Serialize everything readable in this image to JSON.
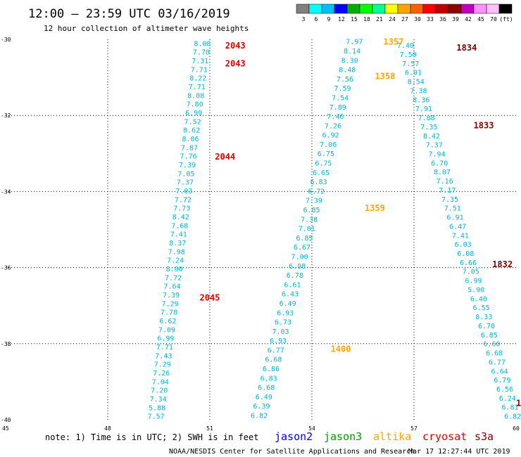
{
  "header": {
    "title": "12:00 – 23:59 UTC 03/16/2019",
    "subtitle": "12 hour collection of altimeter wave heights"
  },
  "colorbar": {
    "labels": [
      "3",
      "6",
      "9",
      "12",
      "15",
      "18",
      "21",
      "24",
      "27",
      "30",
      "33",
      "36",
      "39",
      "42",
      "45",
      "70",
      "(ft)"
    ],
    "colors": [
      "#808080",
      "#00ffff",
      "#00bfff",
      "#0000ff",
      "#00b000",
      "#00ff00",
      "#00ff90",
      "#ffff00",
      "#ffa500",
      "#ff6000",
      "#ff0000",
      "#c00000",
      "#900000",
      "#c000c0",
      "#ff90ff",
      "#ffc0ff",
      "#000000"
    ]
  },
  "footer": {
    "note": "note: 1) Time is in UTC; 2) SWH is in feet",
    "satellites": [
      {
        "name": "jason2",
        "color": "#0000ff"
      },
      {
        "name": "jason3",
        "color": "#00a000"
      },
      {
        "name": "altika",
        "color": "#ffa500"
      },
      {
        "name": "cryosat",
        "color": "#e00000"
      },
      {
        "name": "s3a",
        "color": "#800000"
      }
    ],
    "credit": "NOAA/NESDIS Center for Satellite Applications and Research",
    "timestamp": "Mar 17 12:27:44 UTC 2019"
  },
  "chart_data": {
    "type": "scatter",
    "x_ticks": [
      "45",
      "48",
      "51",
      "54",
      "57",
      "60"
    ],
    "y_ticks": [
      "-30",
      "-32",
      "-34",
      "-36",
      "-38",
      "-40"
    ],
    "xlim": [
      45,
      60
    ],
    "ylim": [
      -40,
      -30
    ],
    "grid": true,
    "swh_color": "#00b4dc",
    "tracks": [
      {
        "satellite": "cryosat",
        "color": "#e00000",
        "start": [
          50.78,
          -30.1
        ],
        "end": [
          49.42,
          -39.9
        ],
        "values": [
          "8.08",
          "7.70",
          "7.31",
          "7.71",
          "8.22",
          "7.71",
          "8.08",
          "7.80",
          "6.99",
          "7.52",
          "8.62",
          "8.06",
          "7.87",
          "7.76",
          "7.39",
          "7.05",
          "7.37",
          "7.03",
          "7.72",
          "7.73",
          "8.42",
          "7.68",
          "7.41",
          "8.37",
          "7.98",
          "7.24",
          "8.00",
          "7.72",
          "7.64",
          "7.39",
          "7.29",
          "7.78",
          "6.62",
          "7.09",
          "6.99",
          "7.71",
          "7.43",
          "7.29",
          "7.26",
          "7.04",
          "7.20",
          "7.34",
          "5.88",
          "7.57"
        ],
        "pass_labels": [
          {
            "text": "2043",
            "lon": 51.45,
            "lat": -30.15
          },
          {
            "text": "2043",
            "lon": 51.45,
            "lat": -30.62
          },
          {
            "text": "2044",
            "lon": 51.15,
            "lat": -33.07
          },
          {
            "text": "2045",
            "lon": 50.7,
            "lat": -36.77
          }
        ]
      },
      {
        "satellite": "altika",
        "color": "#ffa500",
        "start": [
          55.25,
          -30.05
        ],
        "end": [
          52.45,
          -39.88
        ],
        "values": [
          "7.97",
          "8.14",
          "8.30",
          "8.48",
          "7.56",
          "7.59",
          "7.54",
          "7.89",
          "7.46",
          "7.26",
          "6.92",
          "7.06",
          "6.75",
          "6.75",
          "6.65",
          "6.83",
          "6.72",
          "7.39",
          "6.85",
          "7.38",
          "7.01",
          "6.85",
          "6.67",
          "7.00",
          "6.98",
          "6.78",
          "6.61",
          "6.43",
          "6.49",
          "6.93",
          "6.73",
          "7.03",
          "6.93",
          "6.77",
          "6.68",
          "6.86",
          "6.83",
          "6.68",
          "6.49",
          "6.39",
          "6.82"
        ],
        "pass_labels": [
          {
            "text": "1357",
            "lon": 56.1,
            "lat": -30.05
          },
          {
            "text": "1358",
            "lon": 55.85,
            "lat": -30.95
          },
          {
            "text": "1359",
            "lon": 55.55,
            "lat": -34.42
          },
          {
            "text": "1400",
            "lon": 54.55,
            "lat": -38.12
          }
        ]
      },
      {
        "satellite": "s3a",
        "color": "#800000",
        "start": [
          56.75,
          -30.15
        ],
        "end": [
          59.9,
          -39.9
        ],
        "values": [
          "7.40",
          "7.50",
          "7.57",
          "6.91",
          "8.54",
          "7.38",
          "8.36",
          "7.91",
          "7.88",
          "7.35",
          "8.42",
          "7.37",
          "7.94",
          "6.70",
          "8.07",
          "7.16",
          "7.17",
          "7.35",
          "7.51",
          "6.91",
          "6.47",
          "7.41",
          "6.03",
          "6.08",
          "6.66",
          "7.05",
          "6.99",
          "5.90",
          "6.40",
          "6.55",
          "8.33",
          "6.70",
          "6.85",
          "6.60",
          "6.68",
          "6.77",
          "6.64",
          "6.79",
          "6.56",
          "6.24",
          "6.81",
          "6.82"
        ],
        "pass_labels": [
          {
            "text": "1834",
            "lon": 58.25,
            "lat": -30.2
          },
          {
            "text": "1833",
            "lon": 58.75,
            "lat": -32.25
          },
          {
            "text": "1832",
            "lon": 59.3,
            "lat": -35.9
          },
          {
            "text": "18",
            "lon": 60.0,
            "lat": -39.55
          }
        ]
      }
    ]
  }
}
